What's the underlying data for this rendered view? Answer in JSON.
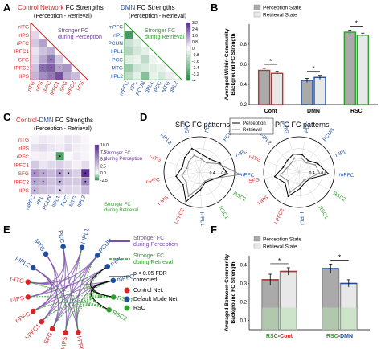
{
  "panels": {
    "A": {
      "label": "A",
      "left": {
        "title_part1": "Control Network",
        "title_part2": " FC Strengths",
        "subtitle": "(Perception - Retrieval)",
        "note_line1": "Stronger FC",
        "note_line2": "during Perception",
        "row_labels": [
          "rITG",
          "rIPS",
          "rPFC",
          "lPFC1",
          "SFG",
          "lPFC2",
          "lIPS"
        ],
        "col_labels": [
          "rITG",
          "rIPS",
          "rPFC",
          "lPFC1",
          "SFG",
          "lPFC2",
          "lIPS"
        ],
        "colors": {
          "title": "#d62728",
          "note": "#6a3d9a"
        }
      },
      "right": {
        "title_part1": "DMN",
        "title_part2": " FC Strengths",
        "subtitle": "(Perception - Retrieval)",
        "note_line1": "Stronger FC",
        "note_line2": "during Retrieval",
        "row_labels": [
          "mPFC",
          "rIPL",
          "PCUN",
          "lIPL1",
          "PCC",
          "MTG",
          "lIPL2"
        ],
        "col_labels": [
          "mPFC",
          "rIPL",
          "PCUN",
          "lIPL1",
          "PCC",
          "MTG",
          "lIPL2"
        ],
        "colorbar_ticks": [
          "3.2",
          "2.4",
          "1.6",
          "0.8",
          "0",
          "-0.8",
          "-1.6",
          "-2.4",
          "-3.2",
          "-4"
        ],
        "colors": {
          "title": "#1f4e9e",
          "note": "#2ca02c"
        }
      }
    },
    "B": {
      "label": "B",
      "legend": [
        "Perception State",
        "Retrieval State"
      ],
      "ylabel_line1": "Averaged Within-Community",
      "ylabel_line2": "Background FC Strength",
      "yticks": [
        "0.2",
        "0.4",
        "0.6",
        "0.8"
      ],
      "sig_marks": [
        "*",
        "*",
        "*"
      ]
    },
    "C": {
      "label": "C",
      "title_part1": "Control",
      "title_part2": "-",
      "title_part3": "DMN",
      "title_part4": " FC Strengths",
      "subtitle": "(Perception - Retrieval)",
      "note_top_line1": "Stronger FC",
      "note_top_line2": "during Perception",
      "note_bottom_line1": "Stronger FC",
      "note_bottom_line2": "during Retrieval",
      "row_labels": [
        "rITG",
        "rIPS",
        "rPFC",
        "lPFC1",
        "SFG",
        "lPFC2",
        "lIPS"
      ],
      "col_labels": [
        "mPFC",
        "rIPL",
        "PCUN",
        "lIPL1",
        "PCC",
        "MTG",
        "lIPL2"
      ],
      "colorbar_ticks": [
        "10.0",
        "7.5",
        "5.0",
        "2.5",
        "0.0",
        "-2.5"
      ]
    },
    "D": {
      "label": "D",
      "title_left": "SFG FC patterns",
      "title_right": "r-PFC FC patterns",
      "legend": [
        "Perception",
        "Retrieval"
      ],
      "radial_ticks": [
        "0.4",
        "0.6"
      ],
      "spoke_labels": [
        {
          "text": "l-IPL2",
          "color": "#1f4e9e"
        },
        {
          "text": "MTG",
          "color": "#1f4e9e"
        },
        {
          "text": "PCC",
          "color": "#1f4e9e"
        },
        {
          "text": "PCUN",
          "color": "#1f4e9e"
        },
        {
          "text": "r-IPL",
          "color": "#1f4e9e"
        },
        {
          "text": "mPFC",
          "color": "#1f4e9e"
        },
        {
          "text": "RSC2",
          "color": "#2ca02c"
        },
        {
          "text": "RSC1",
          "color": "#2ca02c"
        },
        {
          "text": "l-IPL1",
          "color": "#1f4e9e"
        },
        {
          "text": "l-PFC2",
          "color": "#d62728"
        },
        {
          "text": "r-IPS",
          "color": "#d62728"
        },
        {
          "text": "r-PFC",
          "color": "#d62728"
        },
        {
          "text": "r-ITG",
          "color": "#d62728"
        }
      ],
      "spoke_labels_right": [
        {
          "text": "l-IPL2",
          "color": "#1f4e9e"
        },
        {
          "text": "MTG",
          "color": "#1f4e9e"
        },
        {
          "text": "PCC",
          "color": "#1f4e9e"
        },
        {
          "text": "PCUN",
          "color": "#1f4e9e"
        },
        {
          "text": "r-IPL",
          "color": "#1f4e9e"
        },
        {
          "text": "mPFC",
          "color": "#1f4e9e"
        },
        {
          "text": "RSC2",
          "color": "#2ca02c"
        },
        {
          "text": "RSC1",
          "color": "#2ca02c"
        },
        {
          "text": "l-IPL1",
          "color": "#1f4e9e"
        },
        {
          "text": "l-PFC2",
          "color": "#d62728"
        },
        {
          "text": "l-IPS",
          "color": "#d62728"
        },
        {
          "text": "SFG",
          "color": "#d62728"
        },
        {
          "text": "r-ITG",
          "color": "#d62728"
        }
      ]
    },
    "E": {
      "label": "E",
      "legend_perception_line1": "Stronger FC",
      "legend_perception_line2": "during Perception",
      "legend_retrieval_line1": "Stronger FC",
      "legend_retrieval_line2": "during Retrieval",
      "legend_sig_line1": "p < 0.05 FDR",
      "legend_sig_line2": "corrected",
      "legend_nodes": [
        "Control Net.",
        "Default Mode Net.",
        "RSC"
      ],
      "nodes_dmn": [
        "l-IPL2",
        "MTG",
        "PCC",
        "l-IPL1",
        "PCUN",
        "r-IPL",
        "mPFC"
      ],
      "nodes_rsc": [
        "RSC1",
        "RSC2"
      ],
      "nodes_control": [
        "r-ITG",
        "r-IPS",
        "r-PFC",
        "l-PFC1",
        "SFG",
        "l-IPS",
        "l-PFC2"
      ],
      "colors": {
        "perception": "#7b4fa6",
        "retrieval": "#2ca02c",
        "control": "#d62728",
        "dmn": "#1f4e9e",
        "rsc": "#2ca02c"
      }
    },
    "F": {
      "label": "F",
      "legend": [
        "Perception State",
        "Retrieval State"
      ],
      "ylabel_line1": "Averaged Between-Community",
      "ylabel_line2": "Background FC Strength",
      "yticks": [
        "0.1",
        "0.2",
        "0.3",
        "0.4"
      ],
      "sig_marks": [
        "*",
        "*"
      ]
    }
  },
  "chart_data": [
    {
      "type": "bar",
      "panel": "B",
      "categories": [
        "Cont",
        "DMN",
        "RSC"
      ],
      "category_colors": [
        "#d62728",
        "#1f4e9e",
        "#2ca02c"
      ],
      "series": [
        {
          "name": "Perception State",
          "values": [
            0.54,
            0.44,
            0.92
          ],
          "errors": [
            0.02,
            0.02,
            0.02
          ],
          "color": "#aaaaaa"
        },
        {
          "name": "Retrieval State",
          "values": [
            0.51,
            0.47,
            0.89
          ],
          "errors": [
            0.02,
            0.02,
            0.02
          ],
          "color": "#e8e8e8"
        }
      ],
      "ylim": [
        0.2,
        1.0
      ],
      "ylabel": "Averaged Within-Community Background FC Strength"
    },
    {
      "type": "bar",
      "panel": "F",
      "categories": [
        "RSC-Cont",
        "RSC-DMN"
      ],
      "category_label_parts": [
        [
          "RSC",
          "-",
          "Cont"
        ],
        [
          "RSC",
          "-",
          "DMN"
        ]
      ],
      "category_label_colors": [
        [
          "#2ca02c",
          "#000000",
          "#d62728"
        ],
        [
          "#2ca02c",
          "#000000",
          "#1f4e9e"
        ]
      ],
      "series": [
        {
          "name": "Perception State",
          "values": [
            0.32,
            0.38
          ],
          "errors": [
            0.03,
            0.025
          ],
          "color": "#aaaaaa"
        },
        {
          "name": "Retrieval State",
          "values": [
            0.365,
            0.3
          ],
          "errors": [
            0.02,
            0.02
          ],
          "color": "#e8e8e8"
        }
      ],
      "ylim": [
        0.05,
        0.45
      ],
      "ylabel": "Averaged Between-Community Background FC Strength"
    },
    {
      "type": "heatmap",
      "panel": "A-left",
      "rows": [
        "rITG",
        "rIPS",
        "rPFC",
        "lPFC1",
        "SFG",
        "lPFC2",
        "lIPS"
      ],
      "cols": [
        "rITG",
        "rIPS",
        "rPFC",
        "lPFC1",
        "SFG",
        "lPFC2",
        "lIPS"
      ],
      "triangle": "lower",
      "values": [
        [
          null,
          null,
          null,
          null,
          null,
          null,
          null
        ],
        [
          0.6,
          null,
          null,
          null,
          null,
          null,
          null
        ],
        [
          0.8,
          1.4,
          null,
          null,
          null,
          null,
          null
        ],
        [
          0.4,
          0.9,
          1.2,
          null,
          null,
          null,
          null
        ],
        [
          0.6,
          1.3,
          2.0,
          0.8,
          null,
          null,
          null
        ],
        [
          0.9,
          2.2,
          2.4,
          1.4,
          1.6,
          null,
          null
        ],
        [
          1.1,
          1.7,
          2.0,
          2.6,
          1.3,
          1.0,
          null
        ]
      ],
      "significant": [
        [
          4,
          2
        ],
        [
          5,
          1
        ],
        [
          5,
          2
        ],
        [
          5,
          3
        ],
        [
          6,
          2
        ],
        [
          6,
          3
        ]
      ],
      "vmin": -4,
      "vmax": 3.2
    },
    {
      "type": "heatmap",
      "panel": "A-right",
      "rows": [
        "mPFC",
        "rIPL",
        "PCUN",
        "lIPL1",
        "PCC",
        "MTG",
        "lIPL2"
      ],
      "cols": [
        "mPFC",
        "rIPL",
        "PCUN",
        "lIPL1",
        "PCC",
        "MTG",
        "lIPL2"
      ],
      "triangle": "lower",
      "values": [
        [
          null,
          null,
          null,
          null,
          null,
          null,
          null
        ],
        [
          -3.4,
          null,
          null,
          null,
          null,
          null,
          null
        ],
        [
          -1.0,
          -0.6,
          null,
          null,
          null,
          null,
          null
        ],
        [
          -1.4,
          -0.8,
          -0.5,
          null,
          null,
          null,
          null
        ],
        [
          -0.6,
          -0.4,
          -1.2,
          -0.3,
          null,
          null,
          null
        ],
        [
          -1.8,
          -0.9,
          -0.7,
          -0.6,
          -0.4,
          null,
          null
        ],
        [
          -1.2,
          -0.5,
          -2.2,
          -0.4,
          -0.8,
          0.3,
          null
        ]
      ],
      "significant": [
        [
          1,
          0
        ]
      ],
      "vmin": -4,
      "vmax": 3.2
    },
    {
      "type": "heatmap",
      "panel": "C",
      "rows": [
        "rITG",
        "rIPS",
        "rPFC",
        "lPFC1",
        "SFG",
        "lPFC2",
        "lIPS"
      ],
      "cols": [
        "mPFC",
        "rIPL",
        "PCUN",
        "lIPL1",
        "PCC",
        "MTG",
        "lIPL2"
      ],
      "values": [
        [
          0.5,
          1.0,
          0.8,
          0.6,
          1.2,
          1.0,
          0.4
        ],
        [
          1.4,
          1.8,
          1.2,
          0.9,
          1.6,
          0.8,
          0.6
        ],
        [
          0.6,
          0.8,
          0.6,
          -2.0,
          0.3,
          0.9,
          0.5
        ],
        [
          2.5,
          1.2,
          1.8,
          2.2,
          1.5,
          0.7,
          1.6
        ],
        [
          5.0,
          4.0,
          3.2,
          4.5,
          3.0,
          2.2,
          9.5
        ],
        [
          4.2,
          3.8,
          2.8,
          3.6,
          2.6,
          2.4,
          5.5
        ],
        [
          3.5,
          2.8,
          2.5,
          2.2,
          2.0,
          1.8,
          3.2
        ]
      ],
      "significant": [
        [
          2,
          3
        ],
        [
          4,
          0
        ],
        [
          4,
          1
        ],
        [
          4,
          3
        ],
        [
          4,
          4
        ],
        [
          4,
          6
        ],
        [
          5,
          0
        ],
        [
          5,
          1
        ],
        [
          5,
          3
        ],
        [
          5,
          6
        ],
        [
          6,
          0
        ],
        [
          6,
          3
        ]
      ],
      "vmin": -2.5,
      "vmax": 10.0
    },
    {
      "type": "line",
      "panel": "D-left",
      "subtype": "polar",
      "series": [
        {
          "name": "Perception",
          "values": [
            0.55,
            0.62,
            0.5,
            0.48,
            0.58,
            0.68,
            0.45,
            0.4,
            0.5,
            0.75,
            0.55,
            0.6,
            0.5
          ],
          "color": "#000000"
        },
        {
          "name": "Retrieval",
          "values": [
            0.45,
            0.5,
            0.42,
            0.4,
            0.55,
            0.9,
            0.42,
            0.38,
            0.45,
            0.65,
            0.48,
            0.5,
            0.42
          ],
          "color": "#888888"
        }
      ],
      "rlim": [
        0.2,
        0.8
      ]
    },
    {
      "type": "line",
      "panel": "D-right",
      "subtype": "polar",
      "series": [
        {
          "name": "Perception",
          "values": [
            0.48,
            0.52,
            0.5,
            0.45,
            0.55,
            0.7,
            0.42,
            0.4,
            0.48,
            0.65,
            0.5,
            0.62,
            0.48
          ],
          "color": "#000000"
        },
        {
          "name": "Retrieval",
          "values": [
            0.4,
            0.45,
            0.44,
            0.4,
            0.5,
            0.55,
            0.4,
            0.36,
            0.42,
            0.58,
            0.44,
            0.52,
            0.42
          ],
          "color": "#888888"
        }
      ],
      "rlim": [
        0.2,
        0.8
      ]
    }
  ]
}
